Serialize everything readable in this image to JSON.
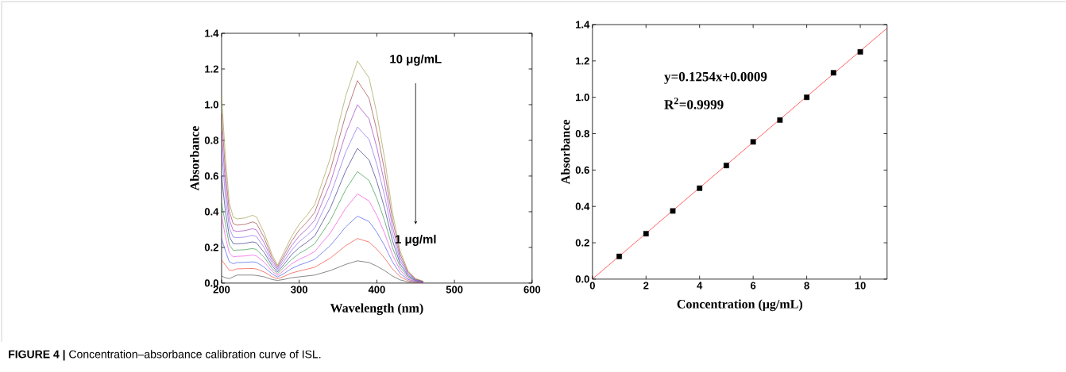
{
  "chart_data": [
    {
      "type": "line",
      "xlabel": "Wavelength (nm)",
      "ylabel": "Absorbance",
      "x": [
        200,
        205,
        210,
        215,
        220,
        230,
        240,
        245,
        255,
        265,
        272,
        280,
        290,
        300,
        310,
        320,
        340,
        360,
        375,
        390,
        400,
        410,
        420,
        430,
        440,
        450,
        460
      ],
      "xlim": [
        200,
        600
      ],
      "ylim": [
        0,
        1.4
      ],
      "xticks": [
        200,
        300,
        400,
        500,
        600
      ],
      "yticks": [
        {
          "value": 0,
          "label": "0.0"
        },
        {
          "value": 0.2,
          "label": "0.2"
        },
        {
          "value": 0.4,
          "label": "0.4"
        },
        {
          "value": 0.6,
          "label": "0.6"
        },
        {
          "value": 0.8,
          "label": "0.8"
        },
        {
          "value": 1.0,
          "label": "1.0"
        },
        {
          "value": 1.2,
          "label": "1.2"
        },
        {
          "value": 1.4,
          "label": "1.4"
        }
      ],
      "annotations": [
        "10 μg/mL",
        "1 μg/ml",
        "**FIGURE 4 |** Concentration–absorbance calibration curve of ISL."
      ],
      "series": [
        {
          "color": "#555555",
          "values": [
            0.04,
            0.03,
            0.025,
            0.035,
            0.045,
            0.045,
            0.045,
            0.043,
            0.035,
            0.02,
            0.015,
            0.02,
            0.03,
            0.035,
            0.04,
            0.045,
            0.07,
            0.105,
            0.125,
            0.115,
            0.095,
            0.07,
            0.04,
            0.018,
            0.007,
            0.003,
            0.001
          ]
        },
        {
          "color": "#f04a3a",
          "values": [
            0.13,
            0.1,
            0.072,
            0.072,
            0.08,
            0.081,
            0.082,
            0.079,
            0.062,
            0.036,
            0.024,
            0.037,
            0.056,
            0.068,
            0.078,
            0.089,
            0.14,
            0.21,
            0.25,
            0.23,
            0.19,
            0.14,
            0.08,
            0.036,
            0.014,
            0.005,
            0.002
          ]
        },
        {
          "color": "#4a5ee8",
          "values": [
            0.25,
            0.18,
            0.119,
            0.109,
            0.115,
            0.116,
            0.119,
            0.116,
            0.089,
            0.051,
            0.034,
            0.053,
            0.081,
            0.101,
            0.116,
            0.133,
            0.21,
            0.315,
            0.375,
            0.345,
            0.285,
            0.21,
            0.12,
            0.054,
            0.021,
            0.008,
            0.003
          ]
        },
        {
          "color": "#f050e0",
          "values": [
            0.38,
            0.26,
            0.167,
            0.147,
            0.15,
            0.152,
            0.157,
            0.152,
            0.117,
            0.067,
            0.043,
            0.07,
            0.107,
            0.133,
            0.153,
            0.177,
            0.28,
            0.42,
            0.5,
            0.46,
            0.38,
            0.28,
            0.16,
            0.072,
            0.028,
            0.01,
            0.004
          ]
        },
        {
          "color": "#3a9a4a",
          "values": [
            0.45,
            0.33,
            0.214,
            0.184,
            0.185,
            0.187,
            0.194,
            0.188,
            0.144,
            0.082,
            0.053,
            0.087,
            0.132,
            0.166,
            0.191,
            0.221,
            0.35,
            0.525,
            0.625,
            0.575,
            0.475,
            0.35,
            0.2,
            0.09,
            0.035,
            0.013,
            0.005
          ]
        },
        {
          "color": "#3a3a8a",
          "values": [
            0.6,
            0.4,
            0.261,
            0.221,
            0.22,
            0.223,
            0.231,
            0.225,
            0.171,
            0.098,
            0.062,
            0.103,
            0.158,
            0.199,
            0.229,
            0.264,
            0.42,
            0.63,
            0.755,
            0.69,
            0.57,
            0.42,
            0.24,
            0.108,
            0.042,
            0.015,
            0.006
          ]
        },
        {
          "color": "#8a6af0",
          "values": [
            0.75,
            0.48,
            0.308,
            0.258,
            0.255,
            0.258,
            0.268,
            0.261,
            0.198,
            0.113,
            0.072,
            0.12,
            0.183,
            0.232,
            0.267,
            0.308,
            0.49,
            0.735,
            0.875,
            0.805,
            0.665,
            0.49,
            0.28,
            0.126,
            0.049,
            0.018,
            0.007
          ]
        },
        {
          "color": "#a040c0",
          "values": [
            0.85,
            0.55,
            0.355,
            0.295,
            0.29,
            0.294,
            0.305,
            0.297,
            0.225,
            0.129,
            0.081,
            0.137,
            0.209,
            0.264,
            0.304,
            0.352,
            0.56,
            0.84,
            1.0,
            0.92,
            0.76,
            0.56,
            0.32,
            0.144,
            0.056,
            0.02,
            0.008
          ]
        },
        {
          "color": "#a04848",
          "values": [
            0.95,
            0.62,
            0.403,
            0.333,
            0.325,
            0.329,
            0.343,
            0.334,
            0.253,
            0.144,
            0.091,
            0.153,
            0.234,
            0.297,
            0.342,
            0.396,
            0.63,
            0.945,
            1.135,
            1.035,
            0.855,
            0.63,
            0.36,
            0.162,
            0.063,
            0.023,
            0.009
          ]
        },
        {
          "color": "#a0a050",
          "values": [
            1.05,
            0.7,
            0.45,
            0.37,
            0.36,
            0.365,
            0.38,
            0.37,
            0.28,
            0.16,
            0.1,
            0.17,
            0.26,
            0.33,
            0.38,
            0.44,
            0.7,
            1.05,
            1.245,
            1.15,
            0.95,
            0.7,
            0.4,
            0.18,
            0.07,
            0.025,
            0.01
          ]
        }
      ]
    },
    {
      "type": "scatter",
      "xlabel": "Concentration (μg/mL)",
      "ylabel": "Absorbance",
      "xlim": [
        0,
        11
      ],
      "ylim": [
        0,
        1.4
      ],
      "xticks": [
        0,
        2,
        4,
        6,
        8,
        10
      ],
      "yticks": [
        {
          "value": 0,
          "label": "0.0"
        },
        {
          "value": 0.2,
          "label": "0.2"
        },
        {
          "value": 0.4,
          "label": "0.4"
        },
        {
          "value": 0.6,
          "label": "0.6"
        },
        {
          "value": 0.8,
          "label": "0.8"
        },
        {
          "value": 1.0,
          "label": "1.0"
        },
        {
          "value": 1.2,
          "label": "1.2"
        },
        {
          "value": 1.4,
          "label": "1.4"
        }
      ],
      "annotations": [
        "y=0.1254x+0.0009",
        "R$^{2}$=0.9999"
      ],
      "series": [
        {
          "type": "scatter",
          "marker": "square",
          "color": "#000000",
          "x": [
            1,
            2,
            3,
            4,
            5,
            6,
            7,
            8,
            9,
            10
          ],
          "values": [
            0.125,
            0.25,
            0.375,
            0.5,
            0.625,
            0.755,
            0.875,
            1.0,
            1.135,
            1.25
          ]
        },
        {
          "type": "line",
          "color": "#ff2020",
          "x": [
            0,
            11
          ],
          "values": [
            0.0009,
            1.3803
          ]
        }
      ]
    }
  ]
}
